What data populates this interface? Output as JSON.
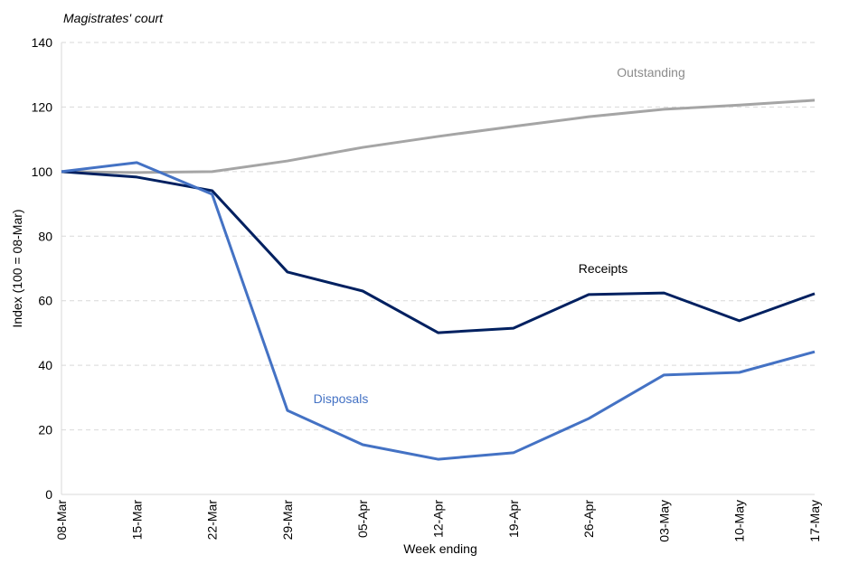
{
  "chart_data": {
    "type": "line",
    "title": "Magistrates' court",
    "xlabel": "Week ending",
    "ylabel": "Index (100 = 08-Mar)",
    "ylim": [
      0,
      140
    ],
    "yticks": [
      0,
      20,
      40,
      60,
      80,
      100,
      120,
      140
    ],
    "grid": true,
    "categories": [
      "08-Mar",
      "15-Mar",
      "22-Mar",
      "29-Mar",
      "05-Apr",
      "12-Apr",
      "19-Apr",
      "26-Apr",
      "03-May",
      "10-May",
      "17-May"
    ],
    "series": [
      {
        "name": "Outstanding",
        "color": "#A5A5A5",
        "values": [
          100,
          99.7,
          100,
          103.3,
          107.5,
          110.9,
          114,
          117,
          119.3,
          120.6,
          122.1
        ]
      },
      {
        "name": "Receipts",
        "color": "#002060",
        "values": [
          100,
          98.3,
          94.1,
          68.9,
          63,
          50.1,
          51.5,
          61.9,
          62.4,
          53.8,
          62.2
        ]
      },
      {
        "name": "Disposals",
        "color": "#4472C4",
        "values": [
          100,
          102.8,
          93,
          26,
          15.4,
          10.9,
          12.9,
          23.5,
          37,
          37.8,
          44.2
        ]
      }
    ]
  }
}
